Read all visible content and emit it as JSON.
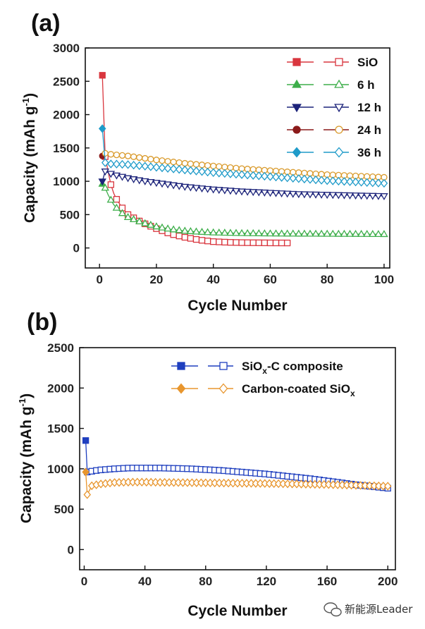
{
  "watermark": "新能源Leader",
  "chart_data": [
    {
      "panel": "(a)",
      "type": "scatter",
      "xlabel": "Cycle Number",
      "ylabel": "Capacity (mAh g-1)",
      "ylabel_main": "Capacity (mAh g",
      "ylabel_sup": "-1",
      "ylabel_close": ")",
      "xlim": [
        -5,
        102
      ],
      "ylim": [
        -300,
        3000
      ],
      "xticks": [
        0,
        20,
        40,
        60,
        80,
        100
      ],
      "yticks": [
        0,
        500,
        1000,
        1500,
        2000,
        2500,
        3000
      ],
      "legend_position": "top-right",
      "series": [
        {
          "name": "SiO",
          "label": "SiO",
          "color": "#d9363e",
          "marker": "square",
          "x": [
            1,
            2,
            3,
            4,
            5,
            6,
            8,
            10,
            15,
            20,
            25,
            30,
            35,
            40,
            45,
            50,
            55,
            60,
            66
          ],
          "y": [
            2590,
            1370,
            1150,
            950,
            820,
            730,
            600,
            500,
            380,
            290,
            210,
            160,
            120,
            95,
            85,
            80,
            78,
            76,
            75
          ]
        },
        {
          "name": "6 h",
          "label": "6 h",
          "color": "#3dae4a",
          "marker": "triangle-up",
          "x": [
            1,
            2,
            3,
            4,
            5,
            6,
            8,
            10,
            15,
            20,
            25,
            30,
            35,
            40,
            50,
            60,
            70,
            80,
            90,
            100
          ],
          "y": [
            960,
            900,
            800,
            720,
            650,
            600,
            520,
            460,
            380,
            320,
            280,
            255,
            240,
            230,
            220,
            215,
            212,
            210,
            208,
            205
          ]
        },
        {
          "name": "12 h",
          "label": "12 h",
          "color": "#1c237a",
          "marker": "triangle-down",
          "x": [
            1,
            2,
            3,
            5,
            10,
            15,
            20,
            30,
            40,
            50,
            60,
            70,
            80,
            90,
            100
          ],
          "y": [
            1000,
            1150,
            1130,
            1100,
            1050,
            1010,
            980,
            920,
            880,
            850,
            830,
            810,
            800,
            790,
            780
          ]
        },
        {
          "name": "24 h",
          "label": "24 h",
          "color": "#8b1a1a",
          "fill_open": "#d99a2b",
          "marker": "circle",
          "x": [
            1,
            2,
            3,
            5,
            10,
            15,
            20,
            30,
            40,
            50,
            60,
            70,
            80,
            90,
            100
          ],
          "y": [
            1380,
            1420,
            1410,
            1400,
            1380,
            1350,
            1320,
            1270,
            1230,
            1190,
            1160,
            1130,
            1100,
            1080,
            1060
          ]
        },
        {
          "name": "36 h",
          "label": "36 h",
          "color": "#1f9bc9",
          "marker": "diamond",
          "x": [
            1,
            2,
            3,
            5,
            10,
            15,
            20,
            30,
            40,
            50,
            60,
            70,
            80,
            90,
            100
          ],
          "y": [
            1790,
            1280,
            1260,
            1260,
            1250,
            1230,
            1210,
            1170,
            1130,
            1100,
            1070,
            1040,
            1010,
            990,
            970
          ]
        }
      ]
    },
    {
      "panel": "(b)",
      "type": "scatter",
      "xlabel": "Cycle Number",
      "ylabel": "Capacity (mAh g-1)",
      "ylabel_main": "Capacity (mAh g",
      "ylabel_sup": "-1",
      "ylabel_close": ")",
      "xlim": [
        -3,
        205
      ],
      "ylim": [
        -250,
        2500
      ],
      "xticks": [
        0,
        40,
        80,
        120,
        160,
        200
      ],
      "yticks": [
        0,
        500,
        1000,
        1500,
        2000,
        2500
      ],
      "legend_position": "top-right",
      "series": [
        {
          "name": "SiOx-C composite",
          "label_main": "SiO",
          "label_sub": "x",
          "label_rest": "-C composite",
          "color": "#1f3fbf",
          "marker": "square",
          "x": [
            1,
            2,
            5,
            10,
            20,
            30,
            40,
            50,
            60,
            70,
            80,
            90,
            100,
            110,
            120,
            130,
            140,
            150,
            160,
            170,
            180,
            190,
            200
          ],
          "y": [
            1350,
            960,
            970,
            985,
            1000,
            1010,
            1010,
            1010,
            1005,
            1000,
            990,
            980,
            965,
            950,
            935,
            915,
            895,
            875,
            850,
            825,
            800,
            780,
            760
          ]
        },
        {
          "name": "Carbon-coated SiOx",
          "label_main": "Carbon-coated SiO",
          "label_sub": "x",
          "color": "#e8962e",
          "marker": "diamond",
          "x": [
            1,
            2,
            5,
            10,
            20,
            30,
            40,
            50,
            60,
            70,
            80,
            90,
            100,
            110,
            120,
            130,
            140,
            150,
            160,
            170,
            180,
            190,
            200
          ],
          "y": [
            960,
            680,
            790,
            810,
            830,
            835,
            835,
            832,
            830,
            828,
            826,
            824,
            822,
            820,
            818,
            815,
            812,
            808,
            805,
            800,
            795,
            790,
            785
          ]
        }
      ]
    }
  ]
}
